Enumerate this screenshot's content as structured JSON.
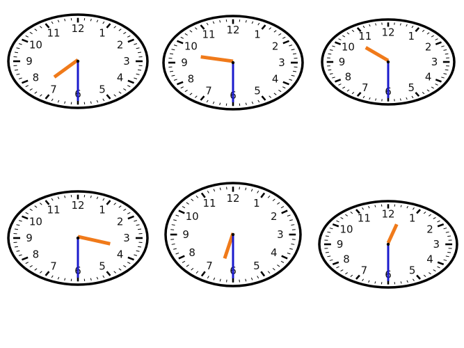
{
  "dial_numbers": [
    "12",
    "1",
    "2",
    "3",
    "4",
    "5",
    "6",
    "7",
    "8",
    "9",
    "10",
    "11"
  ],
  "colors": {
    "face": "#ffffff",
    "rim": "#000000",
    "hour_hand": "#f07a1a",
    "minute_hand": "#1a1acc"
  },
  "clocks": [
    {
      "hour": 7,
      "minute": 30
    },
    {
      "hour": 9,
      "minute": 30
    },
    {
      "hour": 10,
      "minute": 30
    },
    {
      "hour": 3,
      "minute": 30
    },
    {
      "hour": 6,
      "minute": 30
    },
    {
      "hour": 12,
      "minute": 30
    }
  ]
}
